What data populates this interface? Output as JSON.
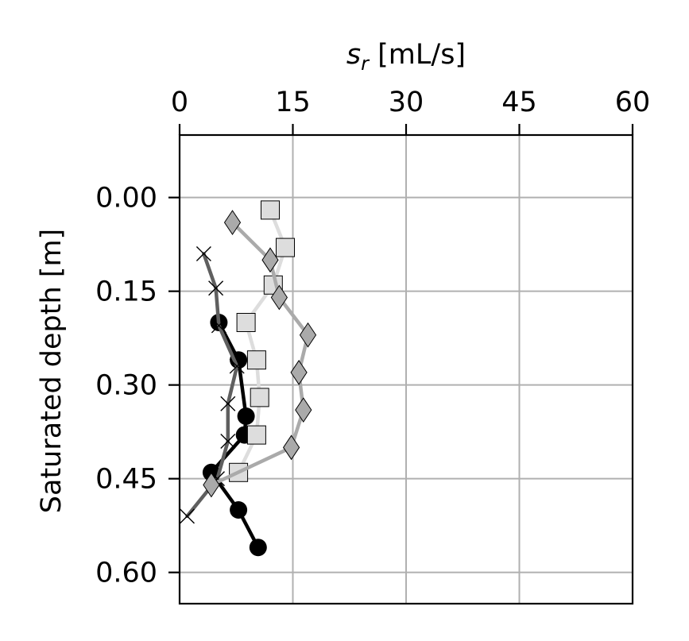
{
  "chart_data": {
    "type": "line",
    "xlabel": "s_r [mL/s]",
    "xlabel_main": "s",
    "xlabel_sub": "r",
    "xlabel_unit": " [mL/s]",
    "ylabel": "Saturated depth [m]",
    "x_axis_position": "top",
    "y_inverted": true,
    "xlim": [
      0,
      60
    ],
    "ylim": [
      -0.1,
      0.65
    ],
    "x_ticks": [
      "0",
      "15",
      "30",
      "45",
      "60"
    ],
    "y_ticks": [
      "0.00",
      "0.15",
      "0.30",
      "0.45",
      "0.60"
    ],
    "grid": true,
    "series": [
      {
        "marker": "circle",
        "color": "#000000",
        "x": [
          5.2,
          7.8,
          8.8,
          8.6,
          4.2,
          7.8,
          10.4
        ],
        "y": [
          0.2,
          0.26,
          0.35,
          0.38,
          0.44,
          0.5,
          0.56
        ]
      },
      {
        "marker": "x",
        "color": "#5f5f5f",
        "x": [
          3.2,
          4.8,
          5.2,
          7.6,
          6.4,
          6.4,
          5.0,
          1.0
        ],
        "y": [
          0.09,
          0.145,
          0.205,
          0.27,
          0.33,
          0.39,
          0.45,
          0.51
        ]
      },
      {
        "marker": "square",
        "color": "#dddddd",
        "x": [
          12.0,
          14.0,
          12.4,
          8.8,
          10.2,
          10.6,
          10.2,
          7.8
        ],
        "y": [
          0.02,
          0.08,
          0.14,
          0.2,
          0.26,
          0.32,
          0.38,
          0.44
        ]
      },
      {
        "marker": "diamond",
        "color": "#aaaaaa",
        "x": [
          7.0,
          12.0,
          13.2,
          17.0,
          15.8,
          16.4,
          14.8,
          4.2
        ],
        "y": [
          0.04,
          0.1,
          0.16,
          0.22,
          0.28,
          0.34,
          0.4,
          0.46
        ]
      }
    ]
  }
}
